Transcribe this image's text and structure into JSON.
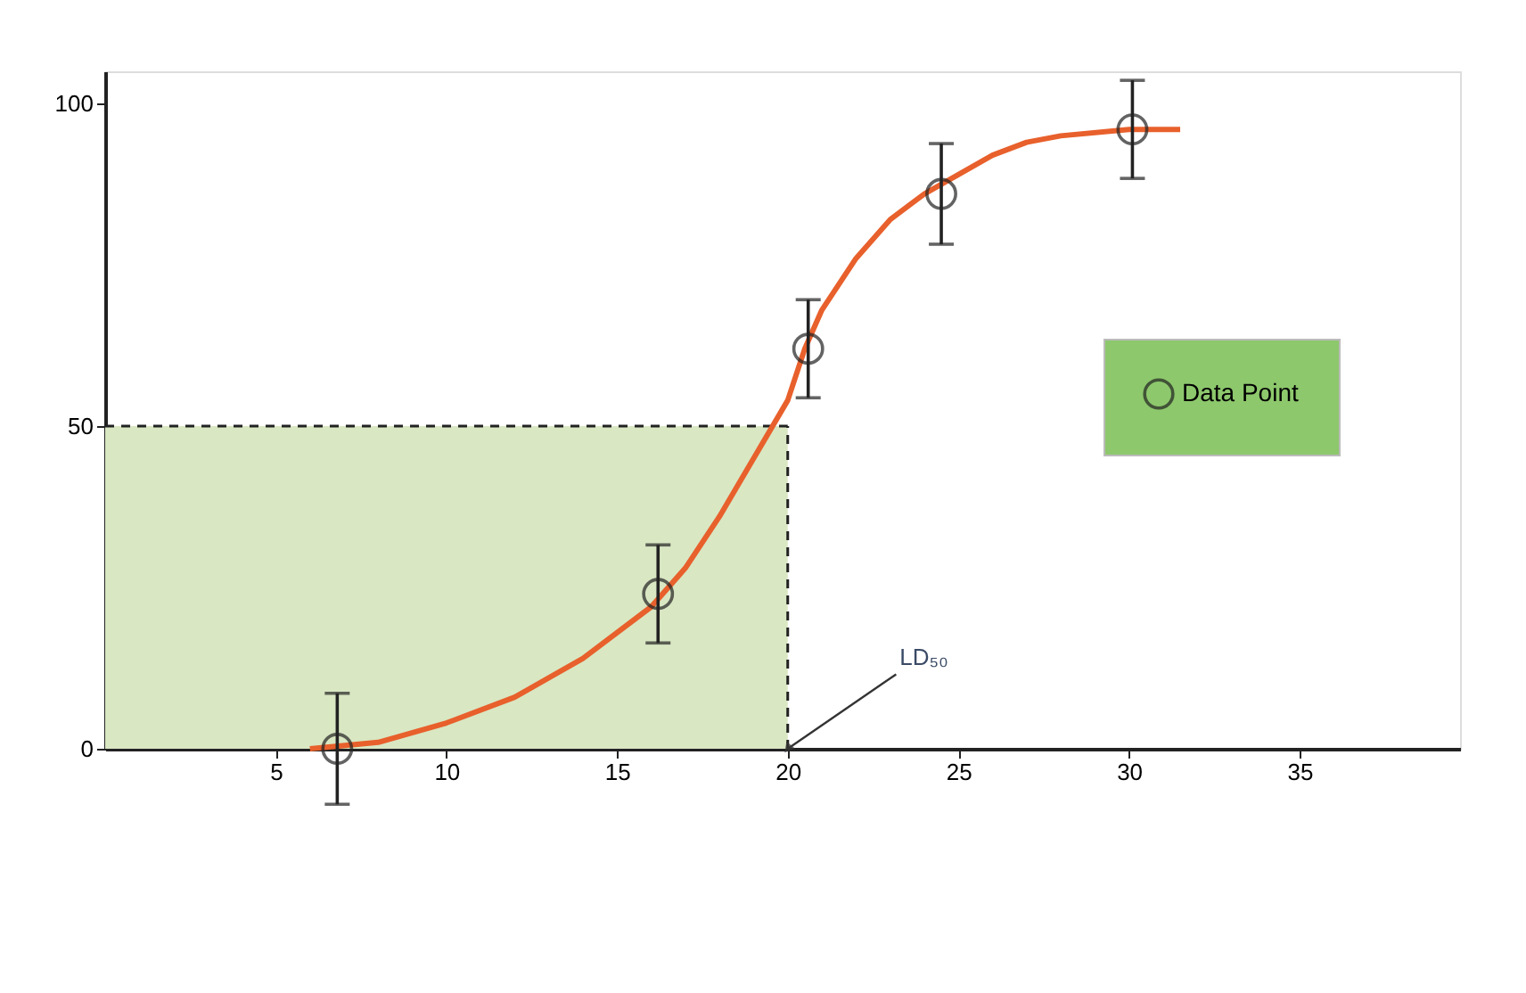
{
  "chart_data": {
    "type": "scatter",
    "xlim": [
      0,
      39.7
    ],
    "xticks": [
      5,
      10,
      15,
      20,
      25,
      30,
      35
    ],
    "ylim": [
      0,
      105
    ],
    "yticks": [
      0,
      50,
      100
    ],
    "series": [
      {
        "type": "line",
        "color": "#e8602c",
        "x": [
          6,
          8,
          10,
          12,
          14,
          16,
          17,
          18,
          19,
          20,
          20.5,
          21,
          22,
          23,
          24,
          25,
          26,
          27,
          28,
          30,
          31.5
        ],
        "values": [
          0,
          1,
          4,
          8,
          14,
          22,
          28,
          36,
          45,
          54,
          62,
          68,
          76,
          82,
          86,
          89,
          92,
          94,
          95,
          96,
          96
        ]
      },
      {
        "name": "Data Point",
        "color": "#222222",
        "marker": "circle",
        "x": [
          6.8,
          16.2,
          20.6,
          24.5,
          30.1
        ],
        "values": [
          0,
          24,
          62,
          86,
          96
        ],
        "errors": [
          8.6,
          7.6,
          7.6,
          7.8,
          7.6
        ]
      }
    ],
    "ref_lines": [
      {
        "axis": "y",
        "value": 50,
        "line_style": "dashed",
        "color": "#222222"
      },
      {
        "axis": "x",
        "value": 20,
        "line_style": "dashed",
        "color": "#222222"
      }
    ],
    "bands": [
      {
        "axis": "x",
        "from": 0,
        "to": 20,
        "color": "#d9e7c3"
      }
    ],
    "annotations": [
      {
        "text": "LD₅₀",
        "x": 20,
        "y": 0
      }
    ],
    "legend": "right",
    "grid": false
  }
}
